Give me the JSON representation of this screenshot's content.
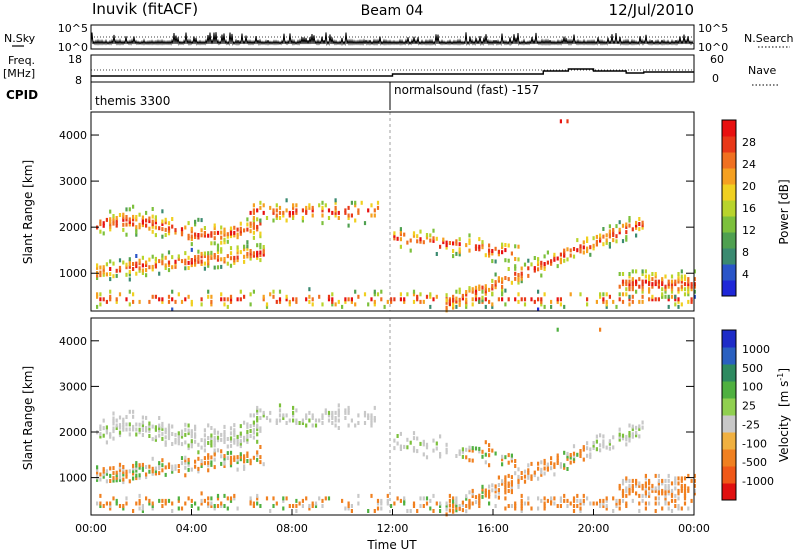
{
  "header": {
    "station": "Inuvik (fitACF)",
    "beam": "Beam 04",
    "date": "12/Jul/2010"
  },
  "chart_data": [
    {
      "type": "line",
      "panel": "sky-noise",
      "left_label": "N.Sky",
      "right_label": "N.Search",
      "left_ticks": [
        "10^5",
        "10^0"
      ],
      "right_ticks": [
        "10^5",
        "10^0"
      ]
    },
    {
      "type": "line",
      "panel": "frequency-nave",
      "left_label": "Freq.",
      "left_unit": "[MHz]",
      "right_label": "Nave",
      "left_ticks": [
        "18",
        "8"
      ],
      "right_ticks": [
        "60",
        "0"
      ],
      "freq_series": {
        "x": [
          0,
          12,
          18,
          19,
          20,
          21.3,
          22,
          24
        ],
        "y": [
          10,
          11,
          12.5,
          13.5,
          12.5,
          11.5,
          12,
          12
        ]
      }
    },
    {
      "type": "table",
      "panel": "cpid",
      "label": "CPID",
      "segments": [
        {
          "start": 0,
          "text": "themis 3300"
        },
        {
          "start": 12,
          "text": "normalsound (fast) -157"
        }
      ]
    },
    {
      "type": "heatmap",
      "panel": "power",
      "ylabel": "Slant Range [km]",
      "xlabel": "Time UT",
      "ylim": [
        180,
        4500
      ],
      "xlim": [
        0,
        24
      ],
      "y_ticks": [
        "1000",
        "2000",
        "3000",
        "4000"
      ],
      "x_ticks": [
        "00:00",
        "04:00",
        "08:00",
        "12:00",
        "16:00",
        "20:00",
        "00:00"
      ],
      "colorbar_label": "Power [dB]",
      "colorbar_ticks": [
        "4",
        "8",
        "12",
        "16",
        "20",
        "24",
        "28"
      ],
      "colorbar_colors": [
        "#1f28d8",
        "#2a55c8",
        "#3a8a70",
        "#4fa050",
        "#7cc03c",
        "#b8d42c",
        "#f0d020",
        "#f5a020",
        "#f07020",
        "#e83818",
        "#e81010"
      ]
    },
    {
      "type": "heatmap",
      "panel": "velocity",
      "ylabel": "Slant Range [km]",
      "xlabel": "Time UT",
      "ylim": [
        180,
        4500
      ],
      "xlim": [
        0,
        24
      ],
      "y_ticks": [
        "1000",
        "2000",
        "3000",
        "4000"
      ],
      "x_ticks": [
        "00:00",
        "04:00",
        "08:00",
        "12:00",
        "16:00",
        "20:00",
        "00:00"
      ],
      "colorbar_label": "Velocity",
      "colorbar_unit": "[m s",
      "colorbar_unit_sup": "-1",
      "colorbar_unit_end": "]",
      "colorbar_ticks": [
        "1000",
        "500",
        "100",
        "25",
        "-25",
        "-100",
        "-500",
        "-1000"
      ],
      "colorbar_colors": [
        "#1e2cc8",
        "#2a60c0",
        "#2e8a60",
        "#4fb040",
        "#90d050",
        "#c8c8c8",
        "#f0b040",
        "#f08020",
        "#f05818",
        "#e01010"
      ]
    }
  ]
}
